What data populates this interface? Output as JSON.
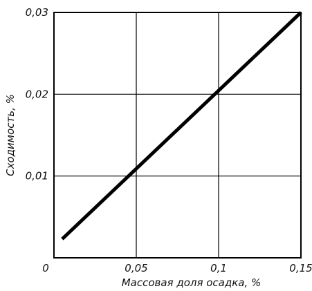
{
  "chart_data": {
    "type": "line",
    "title": "",
    "xlabel": "Массовая доля осадка, %",
    "ylabel": "Сходимость, %",
    "xlim": [
      0,
      0.15
    ],
    "ylim": [
      0,
      0.03
    ],
    "x_ticks": [
      {
        "value": 0,
        "label": "0"
      },
      {
        "value": 0.05,
        "label": "0,05"
      },
      {
        "value": 0.1,
        "label": "0,1"
      },
      {
        "value": 0.15,
        "label": "0,15"
      }
    ],
    "y_ticks": [
      {
        "value": 0.01,
        "label": "0,01"
      },
      {
        "value": 0.02,
        "label": "0,02"
      },
      {
        "value": 0.03,
        "label": "0,03"
      }
    ],
    "grid": true,
    "legend": "none",
    "series": [
      {
        "x": [
          0.005,
          0.15
        ],
        "y": [
          0.0023,
          0.03
        ],
        "color": "#000000"
      }
    ]
  }
}
